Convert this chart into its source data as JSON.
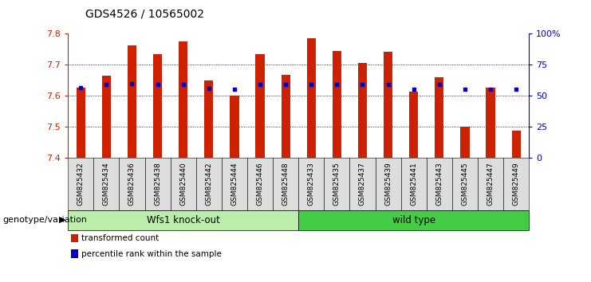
{
  "title": "GDS4526 / 10565002",
  "samples": [
    "GSM825432",
    "GSM825434",
    "GSM825436",
    "GSM825438",
    "GSM825440",
    "GSM825442",
    "GSM825444",
    "GSM825446",
    "GSM825448",
    "GSM825433",
    "GSM825435",
    "GSM825437",
    "GSM825439",
    "GSM825441",
    "GSM825443",
    "GSM825445",
    "GSM825447",
    "GSM825449"
  ],
  "bar_heights": [
    7.627,
    7.665,
    7.762,
    7.734,
    7.775,
    7.649,
    7.6,
    7.734,
    7.668,
    7.787,
    7.745,
    7.707,
    7.743,
    7.615,
    7.66,
    7.5,
    7.627,
    7.487
  ],
  "blue_dot_values": [
    7.627,
    7.638,
    7.64,
    7.638,
    7.638,
    7.625,
    7.622,
    7.638,
    7.638,
    7.638,
    7.638,
    7.638,
    7.638,
    7.622,
    7.638,
    7.622,
    7.622,
    7.622
  ],
  "ymin": 7.4,
  "ymax": 7.8,
  "bar_color": "#CC2200",
  "blue_color": "#0000CC",
  "group1_label": "Wfs1 knock-out",
  "group2_label": "wild type",
  "group1_count": 9,
  "group2_count": 9,
  "group1_bg": "#BBEEAA",
  "group2_bg": "#44CC44",
  "xlabel_left": "genotype/variation",
  "legend_red": "transformed count",
  "legend_blue": "percentile rank within the sample",
  "tick_color_left": "#CC2200",
  "tick_color_right": "#0000CC",
  "right_axis_ticks": [
    0,
    25,
    50,
    75,
    100
  ],
  "right_axis_labels": [
    "0",
    "25",
    "50",
    "75",
    "100%"
  ],
  "xtick_bg": "#DDDDDD",
  "plot_bg": "#FFFFFF"
}
